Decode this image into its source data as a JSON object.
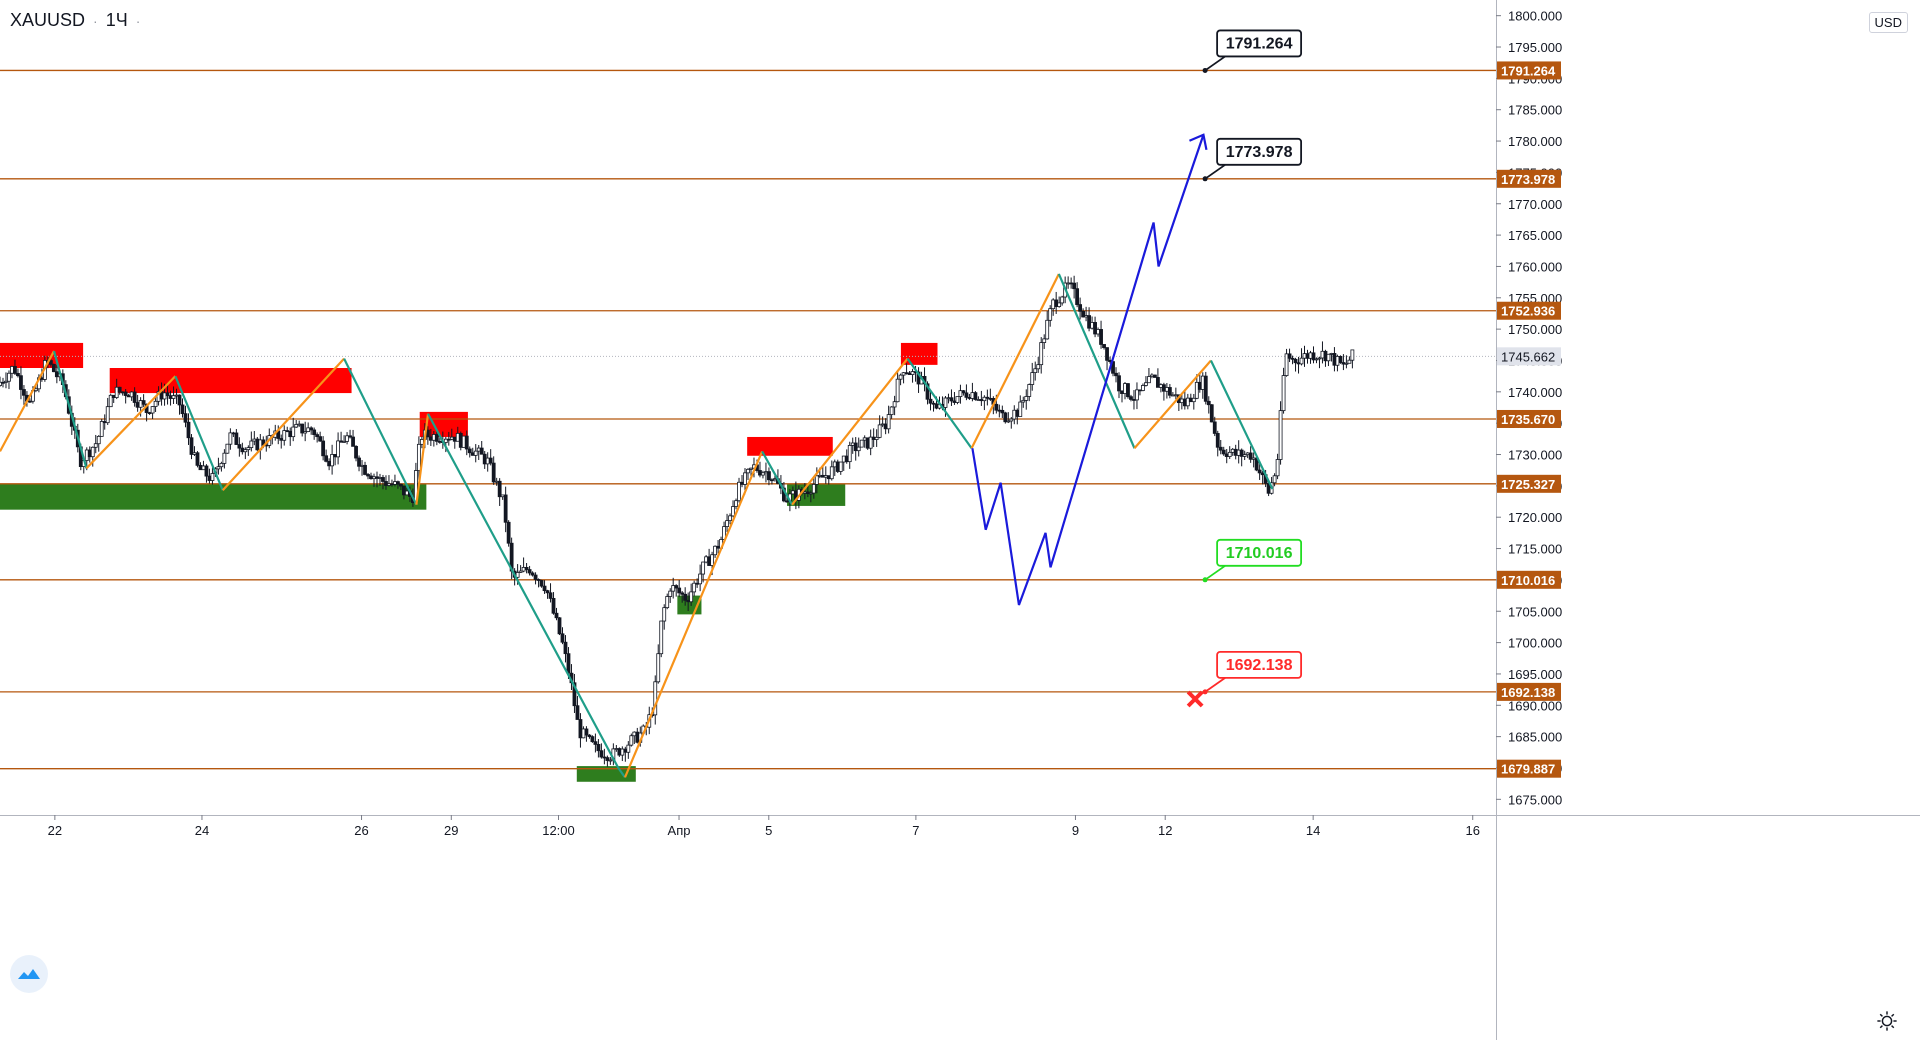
{
  "header": {
    "symbol": "XAUUSD",
    "interval": "1Ч"
  },
  "currency_label": "USD",
  "colors": {
    "level_line": "#b5570f",
    "level_label_bg": "#b5570f",
    "zigzag_up": "#f7931a",
    "zigzag_down": "#1f9e89",
    "forecast": "#1a1adb",
    "supply_zone": "#ff0000",
    "demand_zone": "#2e7d1e",
    "candle": "#131722",
    "last_price_bg": "#e0e3eb"
  },
  "chart_data": {
    "type": "candlestick",
    "y_range": [
      1672.5,
      1802.5
    ],
    "y_ticks": [
      1675,
      1680,
      1685,
      1690,
      1695,
      1700,
      1705,
      1710,
      1715,
      1720,
      1725,
      1730,
      1735,
      1740,
      1745,
      1750,
      1755,
      1760,
      1765,
      1770,
      1775,
      1780,
      1785,
      1790,
      1795,
      1800
    ],
    "y_tick_labels": [
      "1675.000",
      "1680.000",
      "1685.000",
      "1690.000",
      "1695.000",
      "1700.000",
      "1705.000",
      "1710.000",
      "1715.000",
      "1720.000",
      "1725.000",
      "1730.000",
      "1735.000",
      "1740.000",
      "1745.000",
      "1750.000",
      "1755.000",
      "1760.000",
      "1765.000",
      "1770.000",
      "1775.000",
      "1780.000",
      "1785.000",
      "1790.000",
      "1795.000",
      "1800.000"
    ],
    "x_range": [
      0,
      180
    ],
    "x_ticks": [
      {
        "x": 6.6,
        "label": "22"
      },
      {
        "x": 24.3,
        "label": "24"
      },
      {
        "x": 43.5,
        "label": "26"
      },
      {
        "x": 54.3,
        "label": "29"
      },
      {
        "x": 67.2,
        "label": "12:00"
      },
      {
        "x": 81.7,
        "label": "Апр"
      },
      {
        "x": 92.5,
        "label": "5"
      },
      {
        "x": 110.2,
        "label": "7"
      },
      {
        "x": 129.4,
        "label": "9"
      },
      {
        "x": 140.2,
        "label": "12"
      },
      {
        "x": 158.0,
        "label": "14"
      },
      {
        "x": 177.2,
        "label": "16"
      }
    ],
    "horizontal_levels": [
      {
        "value": 1791.264,
        "label": "1791.264"
      },
      {
        "value": 1773.978,
        "label": "1773.978"
      },
      {
        "value": 1752.936,
        "label": "1752.936"
      },
      {
        "value": 1735.67,
        "label": "1735.670"
      },
      {
        "value": 1725.327,
        "label": "1725.327"
      },
      {
        "value": 1710.016,
        "label": "1710.016"
      },
      {
        "value": 1692.138,
        "label": "1692.138"
      },
      {
        "value": 1679.887,
        "label": "1679.887"
      }
    ],
    "last_price": {
      "value": 1745.662,
      "label": "1745.662"
    },
    "callouts": [
      {
        "x": 145.0,
        "y": 1791.264,
        "label": "1791.264",
        "style": "black"
      },
      {
        "x": 145.0,
        "y": 1773.978,
        "label": "1773.978",
        "style": "black"
      },
      {
        "x": 145.0,
        "y": 1710.016,
        "label": "1710.016",
        "style": "green"
      },
      {
        "x": 145.0,
        "y": 1692.138,
        "label": "1692.138",
        "style": "red"
      }
    ],
    "stop_marker": {
      "x": 143.8,
      "y": 1691.0
    },
    "supply_zones": [
      {
        "x0": 0,
        "x1": 10.0,
        "y0": 1743.8,
        "y1": 1747.8
      },
      {
        "x0": 13.2,
        "x1": 42.3,
        "y0": 1739.8,
        "y1": 1743.8
      },
      {
        "x0": 50.5,
        "x1": 56.3,
        "y0": 1732.8,
        "y1": 1736.8
      },
      {
        "x0": 89.9,
        "x1": 100.2,
        "y0": 1729.8,
        "y1": 1732.8
      },
      {
        "x0": 108.4,
        "x1": 112.8,
        "y0": 1744.3,
        "y1": 1747.8
      }
    ],
    "demand_zones": [
      {
        "x0": 0,
        "x1": 51.3,
        "y0": 1721.2,
        "y1": 1725.3
      },
      {
        "x0": 81.5,
        "x1": 84.4,
        "y0": 1704.5,
        "y1": 1707.5
      },
      {
        "x0": 94.7,
        "x1": 101.7,
        "y0": 1721.8,
        "y1": 1725.3
      },
      {
        "x0": 69.4,
        "x1": 76.5,
        "y0": 1677.8,
        "y1": 1680.3
      }
    ],
    "zigzag": [
      {
        "x": 0.0,
        "y": 1730.5
      },
      {
        "x": 6.5,
        "y": 1746.5
      },
      {
        "x": 10.4,
        "y": 1727.8
      },
      {
        "x": 21.1,
        "y": 1742.5
      },
      {
        "x": 26.8,
        "y": 1724.3
      },
      {
        "x": 41.4,
        "y": 1745.3
      },
      {
        "x": 50.1,
        "y": 1722.0
      },
      {
        "x": 51.5,
        "y": 1736.5
      },
      {
        "x": 74.4,
        "y": 1680.0
      },
      {
        "x": 75.2,
        "y": 1678.5
      },
      {
        "x": 91.7,
        "y": 1730.5
      },
      {
        "x": 95.3,
        "y": 1722.0
      },
      {
        "x": 109.2,
        "y": 1745.3
      },
      {
        "x": 116.9,
        "y": 1731.0
      },
      {
        "x": 127.4,
        "y": 1758.8
      },
      {
        "x": 136.5,
        "y": 1731.0
      },
      {
        "x": 145.7,
        "y": 1745.0
      },
      {
        "x": 153.1,
        "y": 1724.5
      }
    ],
    "forecast_path": [
      {
        "x": 117.0,
        "y": 1731.0
      },
      {
        "x": 118.6,
        "y": 1718.0
      },
      {
        "x": 120.4,
        "y": 1725.5
      },
      {
        "x": 122.6,
        "y": 1706.0
      },
      {
        "x": 125.8,
        "y": 1717.5
      },
      {
        "x": 126.4,
        "y": 1712.0
      },
      {
        "x": 138.8,
        "y": 1767.0
      },
      {
        "x": 139.4,
        "y": 1760.0
      },
      {
        "x": 144.8,
        "y": 1781.0
      }
    ],
    "candle_anchors": [
      [
        0,
        1741
      ],
      [
        2,
        1744
      ],
      [
        4,
        1738
      ],
      [
        6,
        1745
      ],
      [
        8,
        1741
      ],
      [
        10,
        1729
      ],
      [
        12,
        1732
      ],
      [
        14,
        1740
      ],
      [
        16,
        1740
      ],
      [
        18,
        1737
      ],
      [
        20,
        1740
      ],
      [
        22,
        1738
      ],
      [
        24,
        1728
      ],
      [
        26,
        1726
      ],
      [
        28,
        1733
      ],
      [
        30,
        1731
      ],
      [
        32,
        1732
      ],
      [
        34,
        1733
      ],
      [
        36,
        1734
      ],
      [
        38,
        1734
      ],
      [
        40,
        1729
      ],
      [
        42,
        1733
      ],
      [
        44,
        1728
      ],
      [
        46,
        1726
      ],
      [
        48,
        1725
      ],
      [
        50,
        1723
      ],
      [
        51,
        1733
      ],
      [
        53,
        1733
      ],
      [
        55,
        1733
      ],
      [
        57,
        1731
      ],
      [
        59,
        1729
      ],
      [
        61,
        1722
      ],
      [
        62,
        1710
      ],
      [
        64,
        1712
      ],
      [
        66,
        1709
      ],
      [
        68,
        1700
      ],
      [
        69,
        1694
      ],
      [
        70,
        1686
      ],
      [
        72,
        1683
      ],
      [
        74,
        1682
      ],
      [
        76,
        1684
      ],
      [
        78,
        1686
      ],
      [
        79,
        1690
      ],
      [
        80,
        1704
      ],
      [
        81,
        1709
      ],
      [
        83,
        1707
      ],
      [
        85,
        1712
      ],
      [
        87,
        1716
      ],
      [
        89,
        1724
      ],
      [
        91,
        1728
      ],
      [
        93,
        1727
      ],
      [
        95,
        1723
      ],
      [
        97,
        1724
      ],
      [
        99,
        1726
      ],
      [
        101,
        1728
      ],
      [
        103,
        1731
      ],
      [
        105,
        1732
      ],
      [
        107,
        1735
      ],
      [
        109,
        1744
      ],
      [
        111,
        1742
      ],
      [
        113,
        1737
      ],
      [
        115,
        1739
      ],
      [
        117,
        1740
      ],
      [
        119,
        1739
      ],
      [
        121,
        1736
      ],
      [
        123,
        1737
      ],
      [
        125,
        1744
      ],
      [
        127,
        1754
      ],
      [
        129,
        1757
      ],
      [
        131,
        1752
      ],
      [
        133,
        1748
      ],
      [
        135,
        1741
      ],
      [
        137,
        1739
      ],
      [
        139,
        1742
      ],
      [
        141,
        1740
      ],
      [
        143,
        1738
      ],
      [
        145,
        1742
      ],
      [
        147,
        1731
      ],
      [
        149,
        1730
      ],
      [
        151,
        1730
      ],
      [
        152,
        1727
      ],
      [
        153,
        1724
      ],
      [
        154,
        1728
      ],
      [
        155,
        1746
      ],
      [
        156,
        1745
      ],
      [
        158,
        1746
      ],
      [
        160,
        1746
      ],
      [
        162,
        1744
      ],
      [
        163,
        1745.6
      ]
    ],
    "grid": false,
    "legend": "none"
  }
}
